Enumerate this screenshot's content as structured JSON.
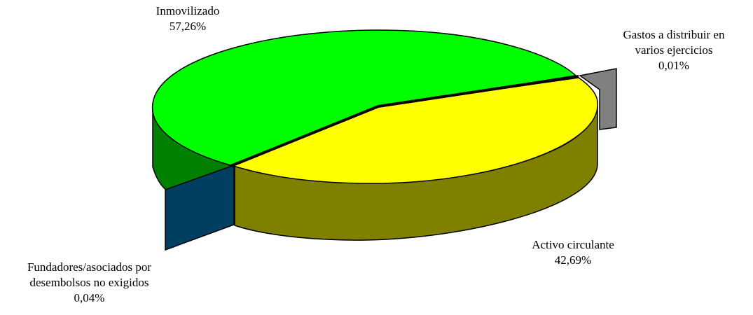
{
  "chart_data": {
    "type": "pie",
    "style": "3d-exploded",
    "legend": "none",
    "slices": [
      {
        "key": "inmovilizado",
        "label": "Inmovilizado",
        "value": 57.26,
        "value_text": "57,26%",
        "label_lines": [
          "Inmovilizado"
        ],
        "color": "#00ff00",
        "side_color": "#008000"
      },
      {
        "key": "gastos",
        "label": "Gastos a distribuir en varios ejercicios",
        "value": 0.01,
        "value_text": "0,01%",
        "label_lines": [
          "Gastos a distribuir en",
          "varios ejercicios"
        ],
        "color": "#c0c0c0",
        "side_color": "#808080"
      },
      {
        "key": "activo",
        "label": "Activo circulante",
        "value": 42.69,
        "value_text": "42,69%",
        "label_lines": [
          "Activo circulante"
        ],
        "color": "#ffff00",
        "side_color": "#808000"
      },
      {
        "key": "fundadores",
        "label": "Fundadores/asociados por desembolsos no exigidos",
        "value": 0.04,
        "value_text": "0,04%",
        "label_lines": [
          "Fundadores/asociados por",
          "desembolsos no exigidos"
        ],
        "color": "#006699",
        "side_color": "#003f5f"
      }
    ]
  }
}
